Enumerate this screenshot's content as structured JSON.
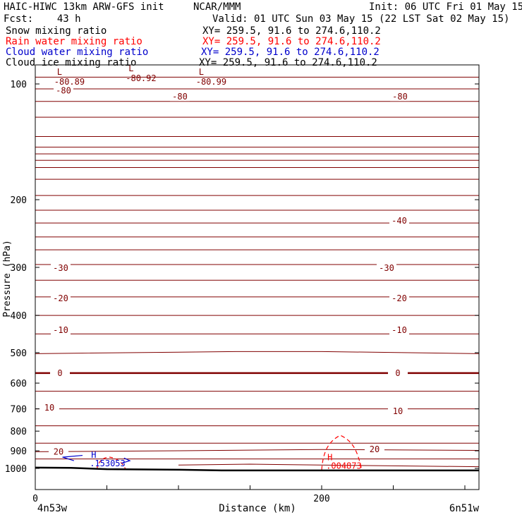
{
  "header": {
    "model_title": "HAIC-HIWC 13km ARW-GFS init",
    "center": "NCAR/MMM",
    "init": "Init: 06 UTC Fri 01 May 15",
    "fcst": "Fcst:    43 h",
    "valid": "Valid: 01 UTC Sun 03 May 15 (22 LST Sat 02 May 15)"
  },
  "legend": [
    {
      "label": "Snow mixing ratio",
      "xy": "XY= 259.5, 91.6 to 274.6,110.2",
      "color": "#000000"
    },
    {
      "label": "Rain water mixing ratio",
      "xy": "XY= 259.5, 91.6 to 274.6,110.2",
      "color": "#ff0000"
    },
    {
      "label": "Cloud water mixing ratio",
      "xy": "XY= 259.5, 91.6 to 274.6,110.2",
      "color": "#0000cc"
    },
    {
      "label": "Cloud ice mixing ratio",
      "xy": "XY= 259.5, 91.6 to 274.6,110.2",
      "color": "#000000"
    }
  ],
  "axes": {
    "ylabel": "Pressure (hPa)",
    "xlabel": "Distance (km)",
    "x_left_label": "4n53w",
    "x_right_label": "6n51w",
    "y_ticks": [
      100,
      200,
      300,
      400,
      500,
      600,
      700,
      800,
      900,
      1000
    ],
    "x_ticks": [
      0,
      200
    ],
    "x_range": [
      0,
      310
    ],
    "y_range": [
      50,
      1035
    ],
    "y_scale": "log"
  },
  "chart_data": {
    "type": "contour",
    "title": "",
    "temperature_contours": [
      {
        "label": "-80",
        "value": -80
      },
      {
        "label": "-40",
        "value": -40
      },
      {
        "label": "-30",
        "value": -30
      },
      {
        "label": "-20",
        "value": -20
      },
      {
        "label": "-10",
        "value": -10
      },
      {
        "label": "0",
        "value": 0
      },
      {
        "label": "10",
        "value": 10
      },
      {
        "label": "20",
        "value": 20
      }
    ],
    "lows": [
      {
        "mark": "L",
        "value": "-80.89",
        "x_km": 25,
        "p_hpa": 95
      },
      {
        "mark": "L",
        "value": "-80.92",
        "x_km": 75,
        "p_hpa": 93
      },
      {
        "mark": "L",
        "value": "-80.99",
        "x_km": 124,
        "p_hpa": 95
      }
    ],
    "highs": [
      {
        "mark": "H",
        "value": ".153053",
        "x_km": 40,
        "p_hpa": 950,
        "color": "#0000cc"
      },
      {
        "mark": "H",
        "value": ".004873",
        "x_km": 205,
        "p_hpa": 965,
        "color": "#ff0000"
      }
    ],
    "terrain_surface_hpa": [
      {
        "x_km": 0,
        "p_hpa": 995
      },
      {
        "x_km": 25,
        "p_hpa": 997
      },
      {
        "x_km": 50,
        "p_hpa": 1005
      },
      {
        "x_km": 100,
        "p_hpa": 1008
      },
      {
        "x_km": 130,
        "p_hpa": 1012
      },
      {
        "x_km": 200,
        "p_hpa": 1012
      },
      {
        "x_km": 310,
        "p_hpa": 1012
      }
    ]
  }
}
